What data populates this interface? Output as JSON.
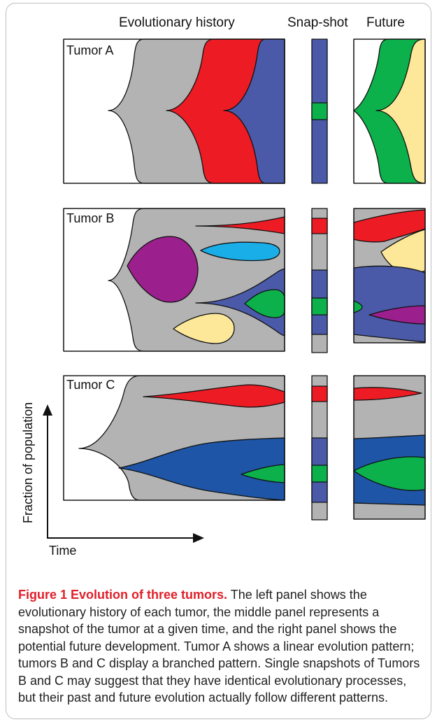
{
  "headers": {
    "history": "Evolutionary history",
    "snapshot": "Snap-shot",
    "future": "Future"
  },
  "tumors": [
    {
      "label": "Tumor A"
    },
    {
      "label": "Tumor B"
    },
    {
      "label": "Tumor C"
    }
  ],
  "axes": {
    "y_label": "Fraction of population",
    "x_label": "Time"
  },
  "colors": {
    "gray": "#b3b3b3",
    "red": "#ed1c24",
    "blue": "#4a5aa8",
    "dark_blue": "#1f55a6",
    "green": "#0cb14b",
    "yellow": "#fde89a",
    "purple": "#9b1f8c",
    "light_blue": "#19aee8"
  },
  "caption": {
    "title": "Figure 1 Evolution of three tumors.",
    "body": " The left panel shows the evolutionary history of each tumor, the middle panel represents a snapshot of the tumor at a given time, and the right panel shows the potential future development. Tumor A shows a linear evolution pattern; tumors B and C display a branched pattern. Single snapshots of Tumors B and C may suggest that they have identical evolutionary processes, but their past and future evolution actually follow different patterns."
  }
}
